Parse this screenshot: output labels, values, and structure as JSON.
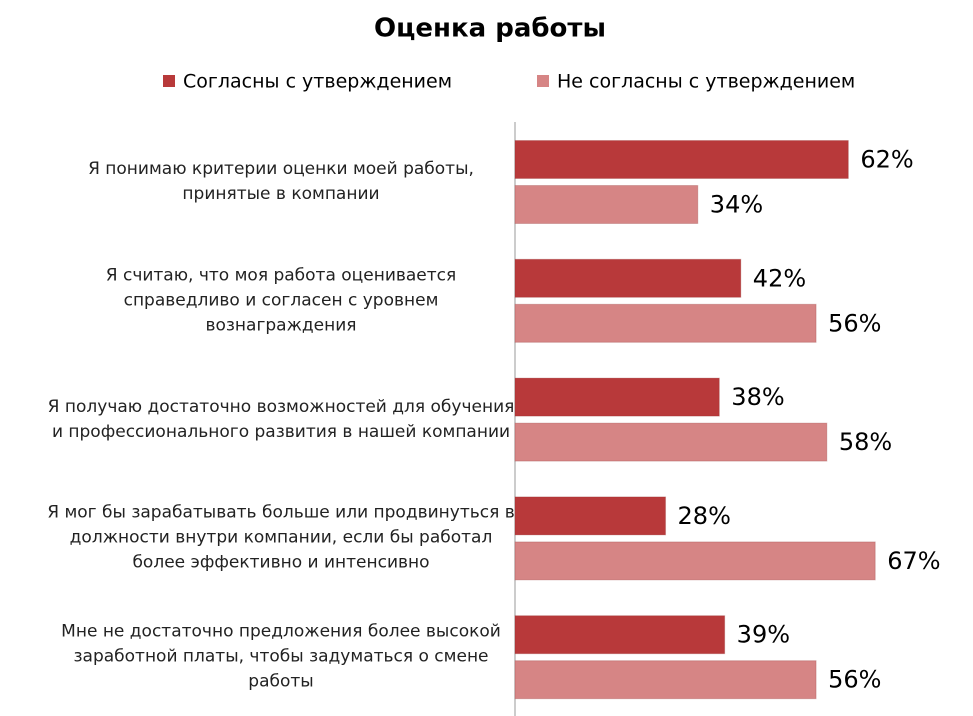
{
  "chart_data": {
    "type": "hbar",
    "title": "Оценка работы",
    "categories": [
      "Я понимаю критерии оценки моей работы, принятые в компании",
      "Я считаю, что моя работа оценивается справедливо и согласен с уровнем вознаграждения",
      "Я получаю достаточно возможностей для обучения и профессионального развития в нашей компании",
      "Я мог бы зарабатывать больше или продвинуться в должности внутри компании, если бы работал более эффективно и интенсивно",
      "Мне не достаточно предложения более высокой заработной платы, чтобы задуматься о смене работы"
    ],
    "series": [
      {
        "name": "Согласны с утверждением",
        "color": "#b8393a",
        "values": [
          62,
          42,
          38,
          28,
          39
        ],
        "value_labels": [
          "62%",
          "42%",
          "38%",
          "28%",
          "39%"
        ]
      },
      {
        "name": "Не согласны с утверждением",
        "color": "#d68585",
        "values": [
          34,
          56,
          58,
          67,
          56
        ],
        "value_labels": [
          "34%",
          "56%",
          "58%",
          "67%",
          "56%"
        ]
      }
    ],
    "xlim": [
      0,
      85
    ]
  }
}
